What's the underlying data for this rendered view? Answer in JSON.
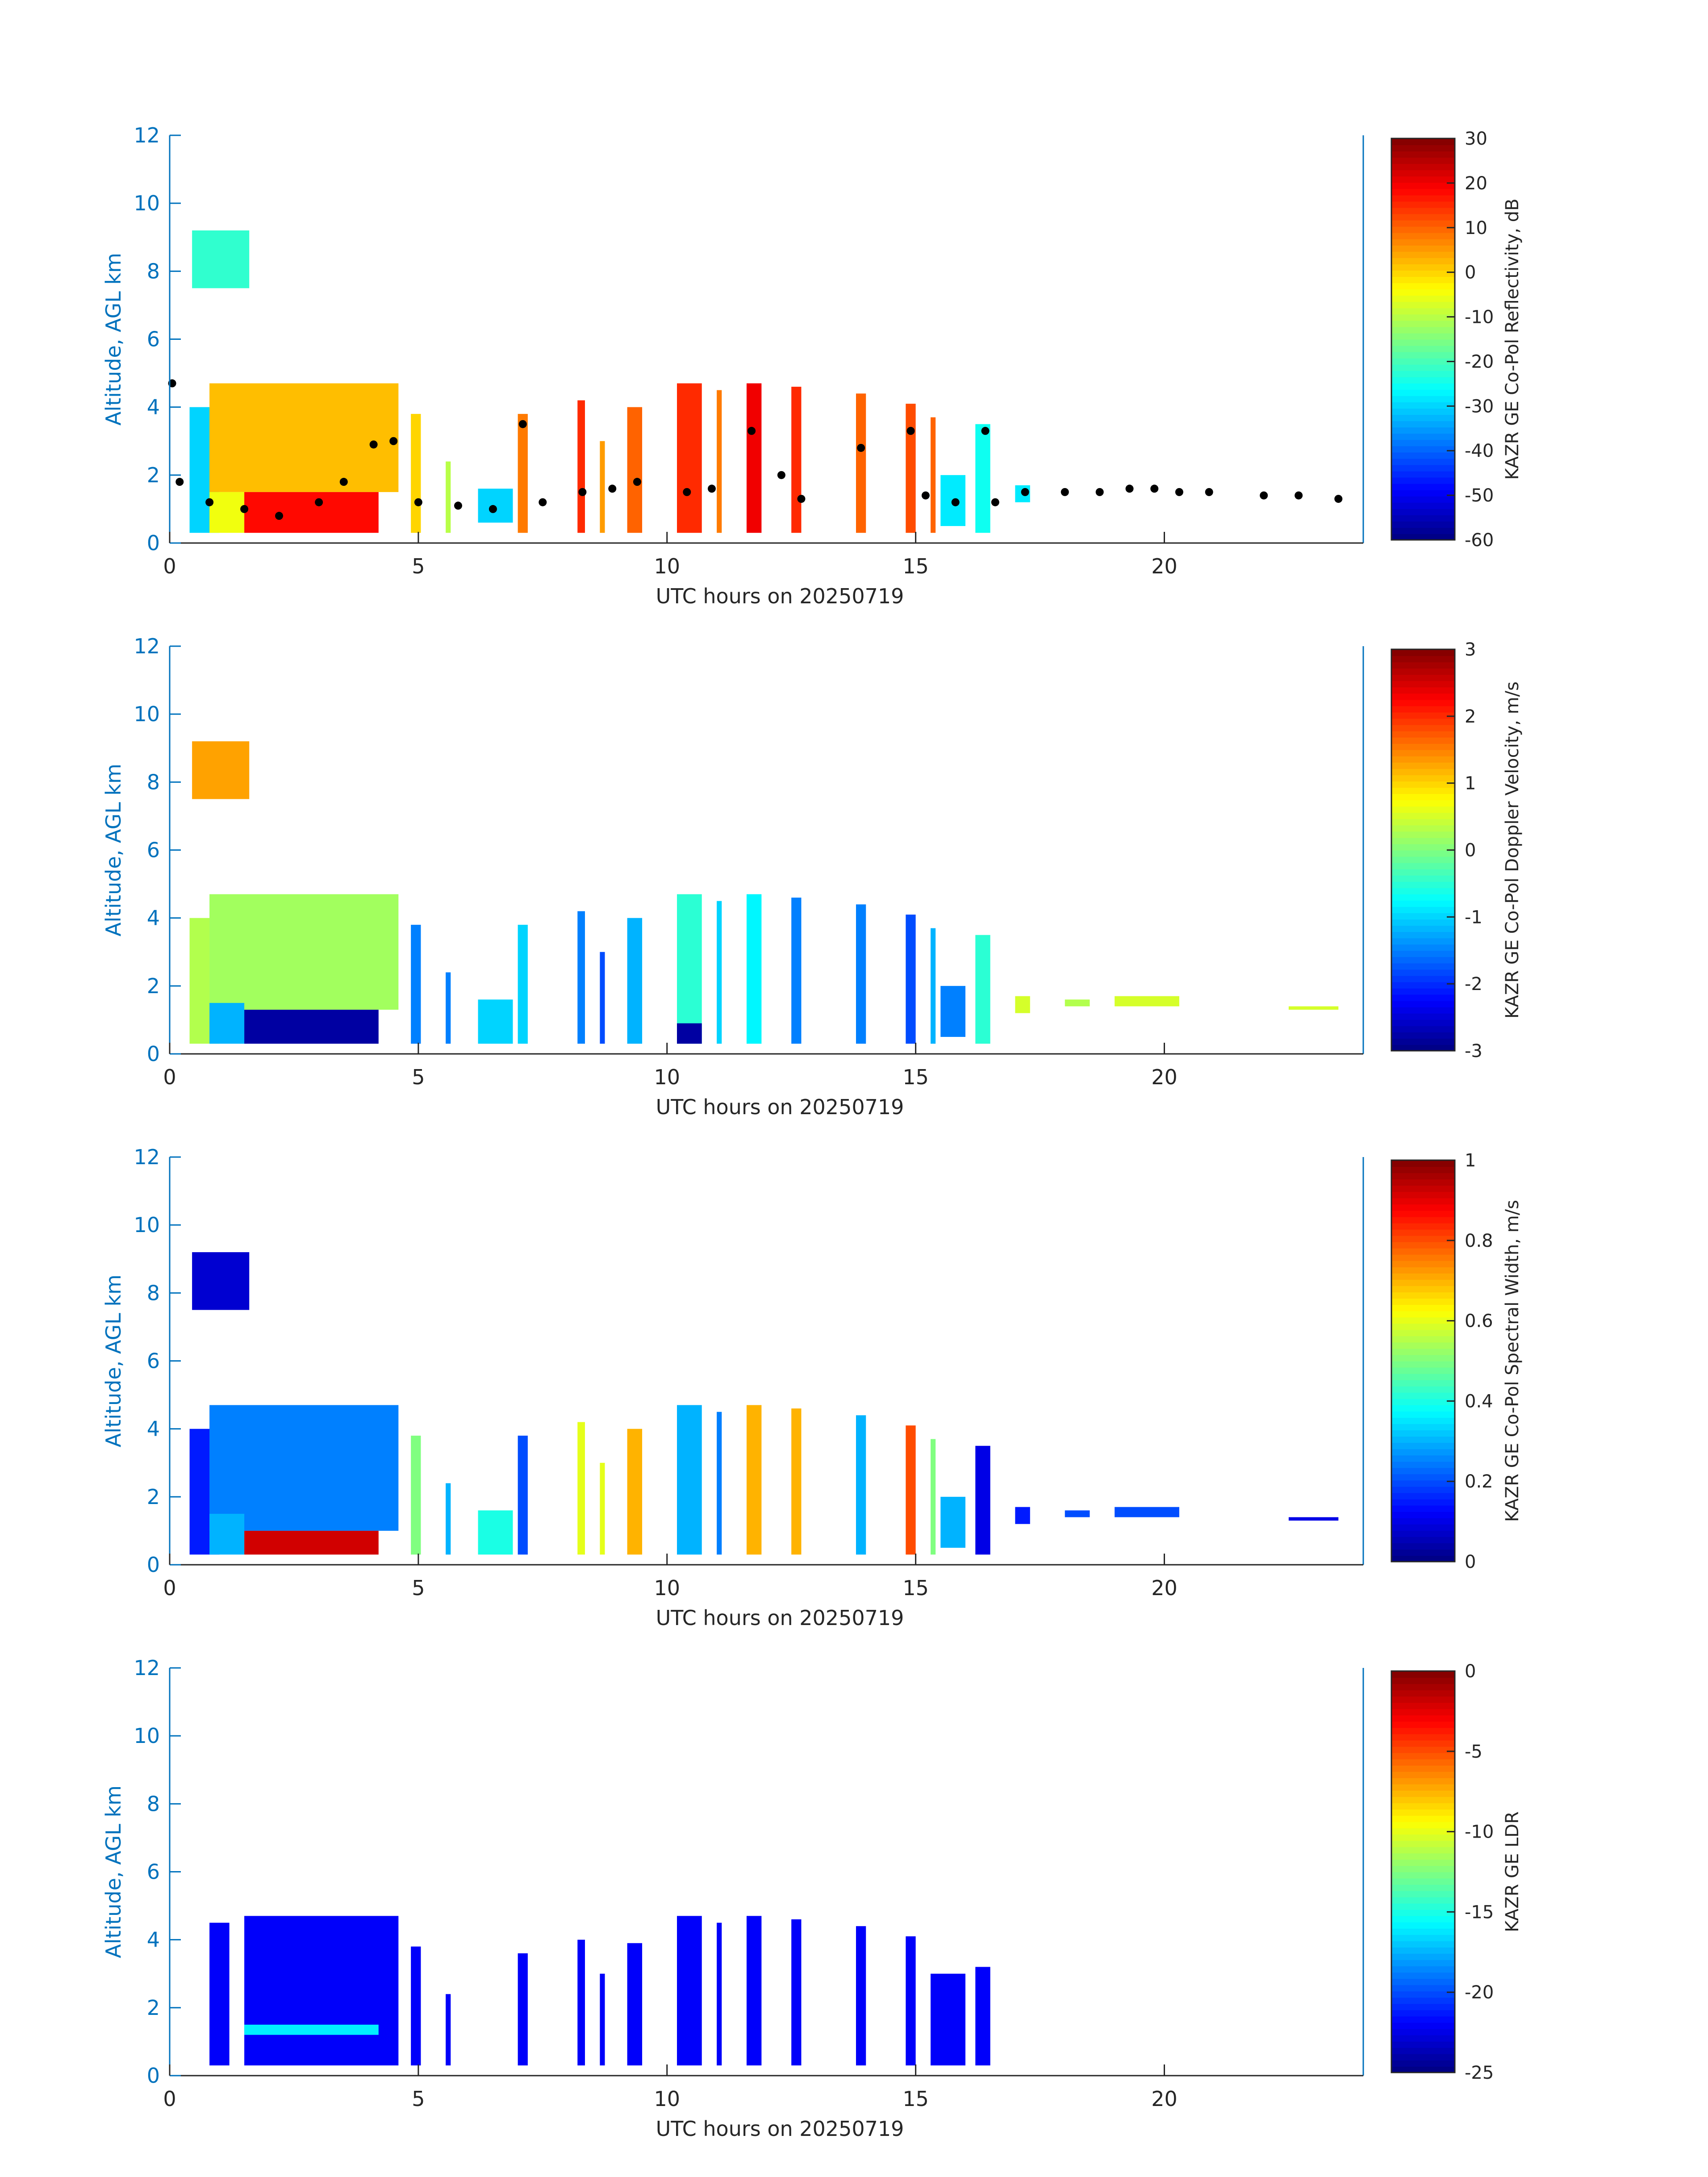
{
  "chart_data": [
    {
      "type": "heatmap",
      "ylabel": "Altitude, AGL km",
      "xlabel": "UTC hours on 20250719",
      "xlim": [
        0,
        24
      ],
      "ylim": [
        0,
        12
      ],
      "xticks": [
        "0",
        "5",
        "10",
        "15",
        "20"
      ],
      "yticks": [
        "0",
        "2",
        "4",
        "6",
        "8",
        "10",
        "12"
      ],
      "colorbar": {
        "label": "KAZR GE Co-Pol Reflectivity, dB",
        "range": [
          -60,
          30
        ],
        "ticks": [
          "30",
          "20",
          "10",
          "0",
          "-10",
          "-20",
          "-30",
          "-40",
          "-50",
          "-60"
        ]
      },
      "echoes": [
        [
          0.45,
          1.6,
          7.5,
          9.2,
          -22
        ],
        [
          0.4,
          1.0,
          0.3,
          4.0,
          -30
        ],
        [
          0.8,
          4.6,
          1.5,
          4.7,
          2
        ],
        [
          0.8,
          1.5,
          0.3,
          1.5,
          -5
        ],
        [
          1.5,
          4.2,
          0.3,
          1.5,
          18
        ],
        [
          4.85,
          5.05,
          0.3,
          3.8,
          0
        ],
        [
          5.55,
          5.65,
          0.3,
          2.4,
          -10
        ],
        [
          6.2,
          6.9,
          0.6,
          1.6,
          -30
        ],
        [
          7.0,
          7.2,
          0.3,
          3.8,
          8
        ],
        [
          8.2,
          8.35,
          0.3,
          4.2,
          15
        ],
        [
          8.65,
          8.75,
          0.3,
          3.0,
          5
        ],
        [
          9.2,
          9.5,
          0.3,
          4.0,
          10
        ],
        [
          10.2,
          10.7,
          0.3,
          4.7,
          15
        ],
        [
          11.0,
          11.1,
          0.3,
          4.5,
          8
        ],
        [
          11.6,
          11.9,
          0.3,
          4.7,
          20
        ],
        [
          12.5,
          12.7,
          0.3,
          4.6,
          15
        ],
        [
          13.8,
          14.0,
          0.3,
          4.4,
          10
        ],
        [
          14.8,
          15.0,
          0.3,
          4.1,
          12
        ],
        [
          15.3,
          15.4,
          0.3,
          3.7,
          10
        ],
        [
          15.5,
          16.0,
          0.5,
          2.0,
          -28
        ],
        [
          16.2,
          16.5,
          0.3,
          3.5,
          -25
        ],
        [
          17.0,
          17.3,
          1.2,
          1.7,
          -28
        ]
      ],
      "cloud_base": [
        [
          0.05,
          4.7
        ],
        [
          0.2,
          1.8
        ],
        [
          0.8,
          1.2
        ],
        [
          1.5,
          1.0
        ],
        [
          2.2,
          0.8
        ],
        [
          3.0,
          1.2
        ],
        [
          3.5,
          1.8
        ],
        [
          4.1,
          2.9
        ],
        [
          4.5,
          3.0
        ],
        [
          5.0,
          1.2
        ],
        [
          5.8,
          1.1
        ],
        [
          6.5,
          1.0
        ],
        [
          7.1,
          3.5
        ],
        [
          7.5,
          1.2
        ],
        [
          8.3,
          1.5
        ],
        [
          8.9,
          1.6
        ],
        [
          9.4,
          1.8
        ],
        [
          10.4,
          1.5
        ],
        [
          10.9,
          1.6
        ],
        [
          11.7,
          3.3
        ],
        [
          12.3,
          2.0
        ],
        [
          12.7,
          1.3
        ],
        [
          13.9,
          2.8
        ],
        [
          14.9,
          3.3
        ],
        [
          15.2,
          1.4
        ],
        [
          15.8,
          1.2
        ],
        [
          16.4,
          3.3
        ],
        [
          16.6,
          1.2
        ],
        [
          17.2,
          1.5
        ],
        [
          18.0,
          1.5
        ],
        [
          18.7,
          1.5
        ],
        [
          19.3,
          1.6
        ],
        [
          19.8,
          1.6
        ],
        [
          20.3,
          1.5
        ],
        [
          20.9,
          1.5
        ],
        [
          22.0,
          1.4
        ],
        [
          22.7,
          1.4
        ],
        [
          23.5,
          1.3
        ]
      ]
    },
    {
      "type": "heatmap",
      "ylabel": "Altitude, AGL km",
      "xlabel": "UTC hours on 20250719",
      "xlim": [
        0,
        24
      ],
      "ylim": [
        0,
        12
      ],
      "xticks": [
        "0",
        "5",
        "10",
        "15",
        "20"
      ],
      "yticks": [
        "0",
        "2",
        "4",
        "6",
        "8",
        "10",
        "12"
      ],
      "colorbar": {
        "label": "KAZR GE Co-Pol Doppler Velocity, m/s",
        "range": [
          -3,
          3
        ],
        "ticks": [
          "3",
          "2",
          "1",
          "0",
          "-1",
          "-2",
          "-3"
        ]
      },
      "echoes": [
        [
          0.45,
          1.6,
          7.5,
          9.2,
          1.3
        ],
        [
          0.4,
          1.0,
          0.3,
          4.0,
          0.3
        ],
        [
          0.8,
          4.6,
          1.3,
          4.7,
          0.2
        ],
        [
          0.8,
          1.5,
          0.3,
          1.5,
          -1.2
        ],
        [
          1.5,
          4.2,
          0.3,
          1.3,
          -2.8
        ],
        [
          4.85,
          5.05,
          0.3,
          3.8,
          -1.5
        ],
        [
          5.55,
          5.65,
          0.3,
          2.4,
          -1.5
        ],
        [
          6.2,
          6.9,
          0.3,
          1.6,
          -1.0
        ],
        [
          7.0,
          7.2,
          0.3,
          3.8,
          -1.0
        ],
        [
          8.2,
          8.35,
          0.3,
          4.2,
          -1.5
        ],
        [
          8.65,
          8.75,
          0.3,
          3.0,
          -1.8
        ],
        [
          9.2,
          9.5,
          0.3,
          4.0,
          -1.2
        ],
        [
          10.2,
          10.7,
          0.3,
          4.7,
          -0.5
        ],
        [
          10.2,
          10.7,
          0.3,
          0.9,
          -2.8
        ],
        [
          11.0,
          11.1,
          0.3,
          4.5,
          -1.0
        ],
        [
          11.6,
          11.9,
          0.3,
          4.7,
          -0.8
        ],
        [
          12.5,
          12.7,
          0.3,
          4.6,
          -1.5
        ],
        [
          13.8,
          14.0,
          0.3,
          4.4,
          -1.5
        ],
        [
          14.8,
          15.0,
          0.3,
          4.1,
          -1.8
        ],
        [
          15.3,
          15.4,
          0.3,
          3.7,
          -1.2
        ],
        [
          15.5,
          16.0,
          0.5,
          2.0,
          -1.5
        ],
        [
          16.2,
          16.5,
          0.3,
          3.5,
          -0.5
        ],
        [
          17.0,
          17.3,
          1.2,
          1.7,
          0.5
        ],
        [
          18.0,
          18.5,
          1.4,
          1.6,
          0.3
        ],
        [
          19.0,
          20.3,
          1.4,
          1.7,
          0.5
        ],
        [
          22.5,
          23.5,
          1.3,
          1.4,
          0.5
        ]
      ]
    },
    {
      "type": "heatmap",
      "ylabel": "Altitude, AGL km",
      "xlabel": "UTC hours on 20250719",
      "xlim": [
        0,
        24
      ],
      "ylim": [
        0,
        12
      ],
      "xticks": [
        "0",
        "5",
        "10",
        "15",
        "20"
      ],
      "yticks": [
        "0",
        "2",
        "4",
        "6",
        "8",
        "10",
        "12"
      ],
      "colorbar": {
        "label": "KAZR GE Co-Pol Spectral Width, m/s",
        "range": [
          0,
          1
        ],
        "ticks": [
          "1",
          "0.8",
          "0.6",
          "0.4",
          "0.2",
          "0"
        ]
      },
      "echoes": [
        [
          0.45,
          1.6,
          7.5,
          9.2,
          0.08
        ],
        [
          0.4,
          1.0,
          0.3,
          4.0,
          0.15
        ],
        [
          0.8,
          4.6,
          1.0,
          4.7,
          0.25
        ],
        [
          1.5,
          4.2,
          0.3,
          1.0,
          0.92
        ],
        [
          0.8,
          1.5,
          0.3,
          1.5,
          0.3
        ],
        [
          4.85,
          5.05,
          0.3,
          3.8,
          0.5
        ],
        [
          5.55,
          5.65,
          0.3,
          2.4,
          0.3
        ],
        [
          6.2,
          6.9,
          0.3,
          1.6,
          0.4
        ],
        [
          7.0,
          7.2,
          0.3,
          3.8,
          0.2
        ],
        [
          8.2,
          8.35,
          0.3,
          4.2,
          0.6
        ],
        [
          8.65,
          8.75,
          0.3,
          3.0,
          0.6
        ],
        [
          9.2,
          9.5,
          0.3,
          4.0,
          0.7
        ],
        [
          10.2,
          10.7,
          0.3,
          4.7,
          0.3
        ],
        [
          11.0,
          11.1,
          0.3,
          4.5,
          0.25
        ],
        [
          11.6,
          11.9,
          0.3,
          4.7,
          0.7
        ],
        [
          12.5,
          12.7,
          0.3,
          4.6,
          0.7
        ],
        [
          13.8,
          14.0,
          0.3,
          4.4,
          0.3
        ],
        [
          14.8,
          15.0,
          0.3,
          4.1,
          0.8
        ],
        [
          15.3,
          15.4,
          0.3,
          3.7,
          0.5
        ],
        [
          15.5,
          16.0,
          0.5,
          2.0,
          0.3
        ],
        [
          16.2,
          16.5,
          0.3,
          3.5,
          0.1
        ],
        [
          17.0,
          17.3,
          1.2,
          1.7,
          0.15
        ],
        [
          18.0,
          18.5,
          1.4,
          1.6,
          0.2
        ],
        [
          19.0,
          20.3,
          1.4,
          1.7,
          0.2
        ],
        [
          22.5,
          23.5,
          1.3,
          1.4,
          0.1
        ]
      ]
    },
    {
      "type": "heatmap",
      "ylabel": "Altitude, AGL km",
      "xlabel": "UTC hours on 20250719",
      "xlim": [
        0,
        24
      ],
      "ylim": [
        0,
        12
      ],
      "xticks": [
        "0",
        "5",
        "10",
        "15",
        "20"
      ],
      "yticks": [
        "0",
        "2",
        "4",
        "6",
        "8",
        "10",
        "12"
      ],
      "colorbar": {
        "label": "KAZR GE LDR",
        "range": [
          -25,
          0
        ],
        "ticks": [
          "0",
          "-5",
          "-10",
          "-15",
          "-20",
          "-25"
        ]
      },
      "echoes": [
        [
          0.8,
          1.2,
          0.3,
          4.5,
          -22
        ],
        [
          1.5,
          4.6,
          0.3,
          4.7,
          -22
        ],
        [
          1.5,
          4.2,
          1.2,
          1.5,
          -16
        ],
        [
          4.85,
          5.05,
          0.3,
          3.8,
          -22
        ],
        [
          5.55,
          5.65,
          0.3,
          2.4,
          -22
        ],
        [
          7.0,
          7.2,
          0.3,
          3.6,
          -22
        ],
        [
          8.2,
          8.35,
          0.3,
          4.0,
          -22
        ],
        [
          8.65,
          8.75,
          0.3,
          3.0,
          -22
        ],
        [
          9.2,
          9.5,
          0.3,
          3.9,
          -22
        ],
        [
          10.2,
          10.7,
          0.3,
          4.7,
          -22
        ],
        [
          11.0,
          11.1,
          0.3,
          4.5,
          -22
        ],
        [
          11.6,
          11.9,
          0.3,
          4.7,
          -22
        ],
        [
          12.5,
          12.7,
          0.3,
          4.6,
          -22
        ],
        [
          13.8,
          14.0,
          0.3,
          4.4,
          -22
        ],
        [
          14.8,
          15.0,
          0.3,
          4.1,
          -22
        ],
        [
          15.3,
          16.0,
          0.3,
          3.0,
          -22
        ],
        [
          16.2,
          16.5,
          0.3,
          3.2,
          -22
        ]
      ]
    }
  ]
}
